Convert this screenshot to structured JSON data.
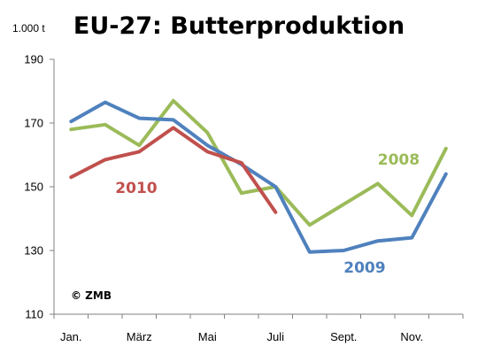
{
  "chart_data": {
    "type": "line",
    "title": "EU-27: Butterproduktion",
    "unit_label": "1.000 t",
    "source": "© ZMB",
    "ylim": [
      110,
      190
    ],
    "yticks": [
      110,
      130,
      150,
      170,
      190
    ],
    "months": 12,
    "x_tick_labels": [
      {
        "month": 1,
        "label": "Jan."
      },
      {
        "month": 3,
        "label": "März"
      },
      {
        "month": 5,
        "label": "Mai"
      },
      {
        "month": 7,
        "label": "Juli"
      },
      {
        "month": 9,
        "label": "Sept."
      },
      {
        "month": 11,
        "label": "Nov."
      }
    ],
    "series": [
      {
        "name": "2008",
        "color": "#9bbb59",
        "label_month": 10,
        "label_value": 157,
        "values": [
          168,
          169.5,
          163,
          177,
          167,
          148,
          150,
          138,
          144.5,
          151,
          141,
          162
        ]
      },
      {
        "name": "2009",
        "color": "#4f81bd",
        "label_month": 9,
        "label_value": 123,
        "values": [
          170.5,
          176.5,
          171.5,
          171,
          163,
          157,
          150,
          129.5,
          130,
          133,
          134,
          154
        ]
      },
      {
        "name": "2010",
        "color": "#c0504d",
        "label_month": 2.3,
        "label_value": 148,
        "values": [
          153,
          158.5,
          161,
          168.5,
          161,
          157.5,
          142
        ]
      }
    ]
  }
}
